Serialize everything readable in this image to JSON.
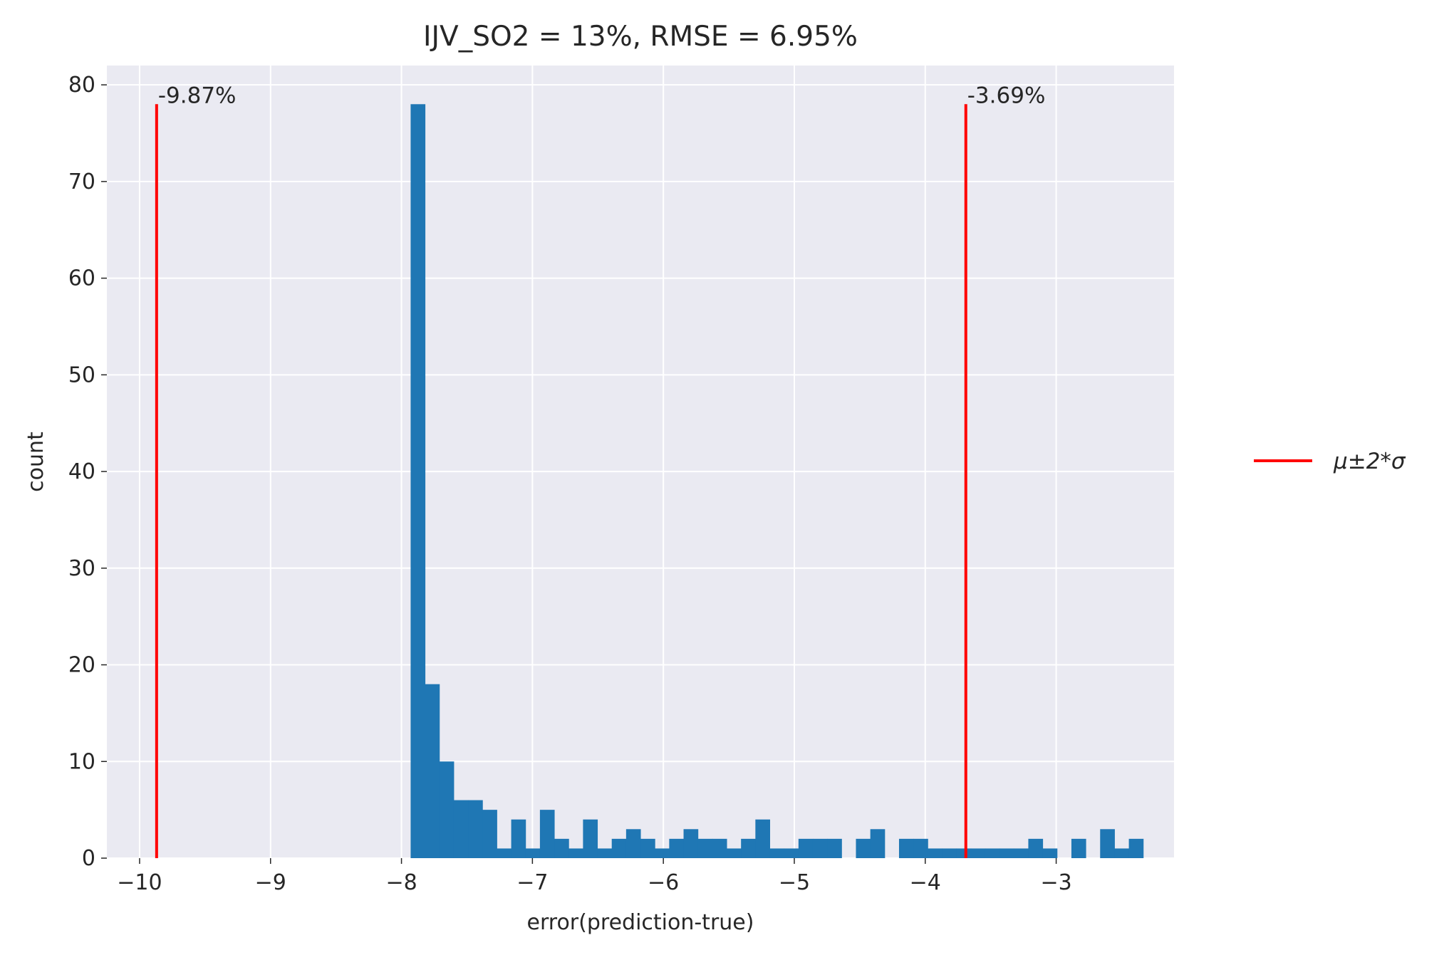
{
  "chart_data": {
    "type": "bar",
    "title": "IJV_SO2 = 13%, RMSE = 6.95%",
    "xlabel": "error(prediction-true)",
    "ylabel": "count",
    "xlim": [
      -10.25,
      -2.1
    ],
    "ylim": [
      0,
      82
    ],
    "grid": true,
    "xticks": [
      -10,
      -9,
      -8,
      -7,
      -6,
      -5,
      -4,
      -3
    ],
    "xtick_labels": [
      "−10",
      "−9",
      "−8",
      "−7",
      "−6",
      "−5",
      "−4",
      "−3"
    ],
    "yticks": [
      0,
      10,
      20,
      30,
      40,
      50,
      60,
      70,
      80
    ],
    "ytick_labels": [
      "0",
      "10",
      "20",
      "30",
      "40",
      "50",
      "60",
      "70",
      "80"
    ],
    "bin_start": -7.93,
    "bin_width": 0.1097,
    "counts": [
      78,
      18,
      10,
      6,
      6,
      5,
      1,
      4,
      1,
      5,
      2,
      1,
      4,
      1,
      2,
      3,
      2,
      1,
      2,
      3,
      2,
      2,
      1,
      2,
      4,
      1,
      1,
      2,
      2,
      2,
      0,
      2,
      3,
      0,
      2,
      2,
      1,
      1,
      1,
      1,
      1,
      1,
      1,
      2,
      1,
      0,
      2,
      0,
      3,
      1,
      2
    ],
    "bar_color": "#1f77b4",
    "vlines": [
      {
        "x": -9.87,
        "ymax": 78,
        "label": "-9.87%",
        "color": "#ff0000"
      },
      {
        "x": -3.69,
        "ymax": 78,
        "label": "-3.69%",
        "color": "#ff0000"
      }
    ],
    "legend": {
      "label": "μ±2*σ",
      "placement": "center-right",
      "color": "#ff0000"
    }
  }
}
